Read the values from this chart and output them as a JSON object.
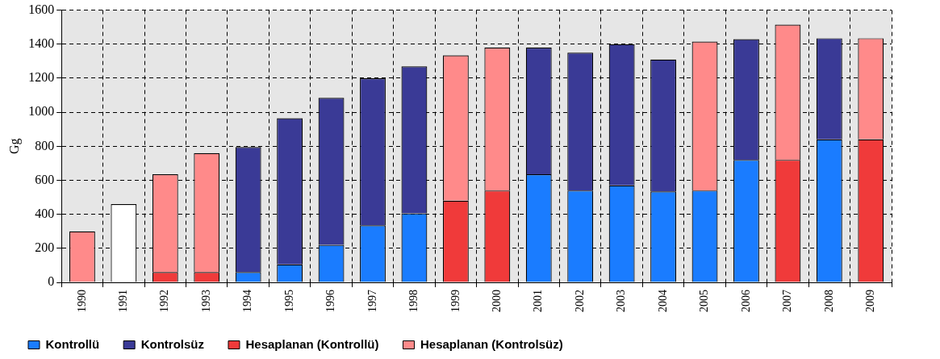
{
  "chart_data": {
    "type": "bar",
    "stacked": true,
    "ylabel": "Gg",
    "categories": [
      "1990",
      "1991",
      "1992",
      "1993",
      "1994",
      "1995",
      "1996",
      "1997",
      "1998",
      "1999",
      "2000",
      "2001",
      "2002",
      "2003",
      "2004",
      "2005",
      "2006",
      "2007",
      "2008",
      "2009"
    ],
    "series": [
      {
        "name": "Kontrollü",
        "color": "#1a7cff",
        "values": [
          null,
          null,
          null,
          null,
          60,
          105,
          220,
          335,
          405,
          null,
          null,
          635,
          540,
          570,
          535,
          540,
          720,
          null,
          840,
          null
        ]
      },
      {
        "name": "Hesaplanan (Kontrollü)",
        "color": "#f03a3a",
        "values": [
          null,
          null,
          60,
          60,
          null,
          null,
          null,
          null,
          null,
          480,
          540,
          null,
          null,
          null,
          null,
          null,
          null,
          720,
          null,
          840
        ]
      },
      {
        "name": "Kontrolsüz",
        "color": "#3a3a96",
        "values": [
          null,
          null,
          null,
          null,
          735,
          860,
          865,
          865,
          865,
          null,
          null,
          745,
          810,
          830,
          775,
          null,
          710,
          null,
          595,
          null
        ]
      },
      {
        "name": "Hesaplanan (Kontrolsüz)",
        "color": "#ff8a8a",
        "colors": [
          "#ff8a8a",
          "#ffffff",
          "#ff8a8a",
          "#ff8a8a",
          "#ff8a8a",
          "#ff8a8a",
          "#ff8a8a",
          "#ff8a8a",
          "#ff8a8a",
          "#ff8a8a",
          "#ff8a8a",
          "#ff8a8a",
          "#ff8a8a",
          "#ff8a8a",
          "#ff8a8a",
          "#ff8a8a",
          "#ff8a8a",
          "#ff8a8a",
          "#ff8a8a",
          "#ff8a8a"
        ],
        "values": [
          300,
          460,
          575,
          700,
          null,
          null,
          null,
          null,
          null,
          855,
          840,
          null,
          null,
          null,
          null,
          875,
          null,
          795,
          null,
          595
        ]
      }
    ],
    "ylim": [
      0,
      1600
    ],
    "yticks": [
      0,
      200,
      400,
      600,
      800,
      1000,
      1200,
      1400,
      1600
    ],
    "grid": true,
    "legend": "bottom"
  }
}
